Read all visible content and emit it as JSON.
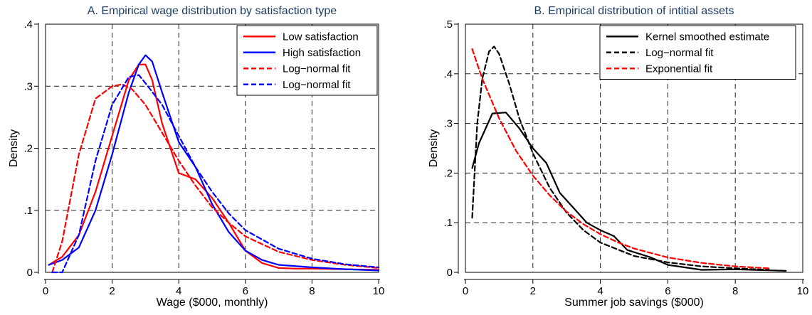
{
  "chart_data": [
    {
      "type": "line",
      "title": "A. Empirical wage distribution by satisfaction type",
      "xlabel": "Wage ($000, monthly)",
      "ylabel": "Density",
      "xlim": [
        0,
        10
      ],
      "ylim": [
        0,
        0.4
      ],
      "xticks": [
        0,
        2,
        4,
        6,
        8,
        10
      ],
      "xtick_labels": [
        "0",
        "2",
        "4",
        "6",
        "8",
        "10"
      ],
      "yticks": [
        0,
        0.1,
        0.2,
        0.3,
        0.4
      ],
      "ytick_labels": [
        "0",
        ".1",
        ".2",
        ".3",
        ".4"
      ],
      "grid": true,
      "legend_position": "top-right",
      "series": [
        {
          "name": "Low satisfaction",
          "color": "#ff0000",
          "dash": "solid",
          "x": [
            0.1,
            0.5,
            1.0,
            1.5,
            2.0,
            2.5,
            2.8,
            3.0,
            3.2,
            3.5,
            4.0,
            4.5,
            5.0,
            5.5,
            6.0,
            6.5,
            7.0,
            7.5,
            8.0,
            9.0,
            10.0
          ],
          "y": [
            0.012,
            0.025,
            0.06,
            0.13,
            0.22,
            0.31,
            0.335,
            0.335,
            0.31,
            0.24,
            0.16,
            0.15,
            0.12,
            0.08,
            0.035,
            0.015,
            0.007,
            0.006,
            0.006,
            0.005,
            0.004
          ]
        },
        {
          "name": "High satisfaction",
          "color": "#0000ff",
          "dash": "solid",
          "x": [
            0.1,
            0.5,
            1.0,
            1.5,
            2.0,
            2.5,
            2.8,
            3.0,
            3.2,
            3.5,
            4.0,
            4.5,
            5.0,
            5.5,
            6.0,
            6.5,
            7.0,
            8.0,
            9.0,
            10.0
          ],
          "y": [
            0.012,
            0.02,
            0.04,
            0.1,
            0.19,
            0.29,
            0.335,
            0.35,
            0.34,
            0.29,
            0.21,
            0.17,
            0.11,
            0.065,
            0.035,
            0.02,
            0.012,
            0.008,
            0.005,
            0.003
          ]
        },
        {
          "name": "Log−normal fit",
          "color": "#ff0000",
          "dash": "dashed",
          "x": [
            0.2,
            0.5,
            1.0,
            1.5,
            2.0,
            2.3,
            2.6,
            3.0,
            3.5,
            4.0,
            4.5,
            5.0,
            5.5,
            6.0,
            7.0,
            8.0,
            9.0,
            10.0
          ],
          "y": [
            0.0,
            0.05,
            0.19,
            0.28,
            0.3,
            0.303,
            0.295,
            0.27,
            0.225,
            0.18,
            0.14,
            0.105,
            0.08,
            0.058,
            0.033,
            0.02,
            0.012,
            0.007
          ]
        },
        {
          "name": "Log−normal fit",
          "color": "#0000ff",
          "dash": "dashed",
          "x": [
            0.2,
            0.5,
            1.0,
            1.5,
            2.0,
            2.5,
            2.8,
            3.0,
            3.5,
            4.0,
            4.5,
            5.0,
            5.5,
            6.0,
            7.0,
            8.0,
            9.0,
            10.0
          ],
          "y": [
            0.0,
            0.0,
            0.06,
            0.18,
            0.27,
            0.315,
            0.318,
            0.305,
            0.27,
            0.22,
            0.17,
            0.13,
            0.095,
            0.068,
            0.038,
            0.022,
            0.013,
            0.008
          ]
        }
      ]
    },
    {
      "type": "line",
      "title": "B. Empirical distribution of intitial assets",
      "xlabel": "Summer job savings ($000)",
      "ylabel": "Density",
      "xlim": [
        0,
        10
      ],
      "ylim": [
        0,
        0.5
      ],
      "xticks": [
        0,
        2,
        4,
        6,
        8,
        10
      ],
      "xtick_labels": [
        "0",
        "2",
        "4",
        "6",
        "8",
        "10"
      ],
      "yticks": [
        0,
        0.1,
        0.2,
        0.3,
        0.4,
        0.5
      ],
      "ytick_labels": [
        "0",
        ".1",
        ".2",
        ".3",
        ".4",
        ".5"
      ],
      "grid": true,
      "legend_position": "top-right",
      "series": [
        {
          "name": "Kernel smoothed estimate",
          "color": "#000000",
          "dash": "solid",
          "x": [
            0.2,
            0.4,
            0.8,
            1.2,
            1.6,
            2.0,
            2.4,
            2.8,
            3.2,
            3.6,
            4.0,
            4.4,
            4.8,
            5.5,
            6.0,
            7.0,
            8.0,
            9.0,
            9.5
          ],
          "y": [
            0.21,
            0.26,
            0.32,
            0.322,
            0.29,
            0.25,
            0.22,
            0.16,
            0.13,
            0.1,
            0.085,
            0.073,
            0.045,
            0.03,
            0.015,
            0.005,
            0.006,
            0.004,
            0.003
          ]
        },
        {
          "name": "Log−normal fit",
          "color": "#000000",
          "dash": "dashed",
          "x": [
            0.2,
            0.35,
            0.5,
            0.7,
            0.85,
            1.0,
            1.3,
            1.6,
            2.0,
            2.5,
            3.0,
            3.5,
            4.0,
            5.0,
            6.0,
            7.0,
            8.0,
            9.0
          ],
          "y": [
            0.11,
            0.3,
            0.39,
            0.445,
            0.455,
            0.44,
            0.38,
            0.31,
            0.24,
            0.17,
            0.12,
            0.085,
            0.06,
            0.033,
            0.02,
            0.012,
            0.008,
            0.005
          ]
        },
        {
          "name": "Exponential fit",
          "color": "#ff0000",
          "dash": "dashed",
          "x": [
            0.2,
            0.5,
            1.0,
            1.5,
            2.0,
            2.5,
            3.0,
            3.5,
            4.0,
            4.5,
            5.0,
            6.0,
            7.0,
            8.0,
            9.0
          ],
          "y": [
            0.45,
            0.39,
            0.31,
            0.245,
            0.195,
            0.155,
            0.122,
            0.097,
            0.077,
            0.061,
            0.048,
            0.03,
            0.019,
            0.012,
            0.008
          ]
        }
      ]
    }
  ]
}
